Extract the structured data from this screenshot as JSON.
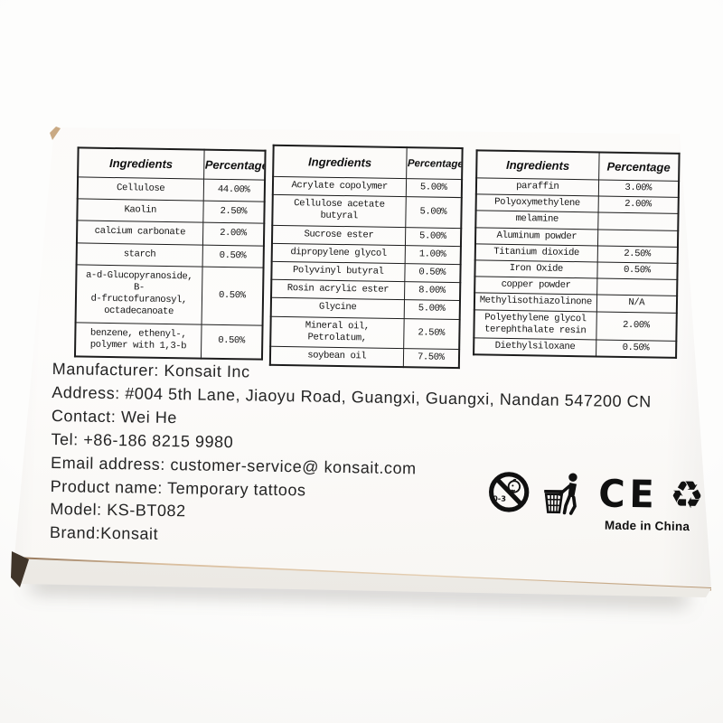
{
  "product_label": {
    "tables": [
      {
        "headers": {
          "ingredients": "Ingredients",
          "percentage": "Percentage"
        },
        "rows": [
          {
            "ingredient": "Cellulose",
            "percentage": "44.00%"
          },
          {
            "ingredient": "Kaolin",
            "percentage": "2.50%"
          },
          {
            "ingredient": "calcium carbonate",
            "percentage": "2.00%"
          },
          {
            "ingredient": "starch",
            "percentage": "0.50%"
          },
          {
            "ingredient": "a-d-Glucopyranoside, B-\nd-fructofuranosyl,\noctadecanoate",
            "percentage": "0.50%"
          },
          {
            "ingredient": "benzene, ethenyl-,\npolymer with 1,3-b",
            "percentage": "0.50%"
          }
        ]
      },
      {
        "headers": {
          "ingredients": "Ingredients",
          "percentage": "Percentage"
        },
        "rows": [
          {
            "ingredient": "Acrylate copolymer",
            "percentage": "5.00%"
          },
          {
            "ingredient": "Cellulose acetate\nbutyral",
            "percentage": "5.00%"
          },
          {
            "ingredient": "Sucrose ester",
            "percentage": "5.00%"
          },
          {
            "ingredient": "dipropylene glycol",
            "percentage": "1.00%"
          },
          {
            "ingredient": "Polyvinyl butyral",
            "percentage": "0.50%"
          },
          {
            "ingredient": "Rosin acrylic ester",
            "percentage": "8.00%"
          },
          {
            "ingredient": "Glycine",
            "percentage": "5.00%"
          },
          {
            "ingredient": "Mineral oil, Petrolatum,",
            "percentage": "2.50%"
          },
          {
            "ingredient": "soybean oil",
            "percentage": "7.50%"
          }
        ]
      },
      {
        "headers": {
          "ingredients": "Ingredients",
          "percentage": "Percentage"
        },
        "rows": [
          {
            "ingredient": "paraffin",
            "percentage": "3.00%"
          },
          {
            "ingredient": "Polyoxymethylene",
            "percentage": "2.00%"
          },
          {
            "ingredient": "melamine",
            "percentage": ""
          },
          {
            "ingredient": "Aluminum powder",
            "percentage": ""
          },
          {
            "ingredient": "Titanium dioxide",
            "percentage": "2.50%"
          },
          {
            "ingredient": "Iron Oxide",
            "percentage": "0.50%"
          },
          {
            "ingredient": "copper powder",
            "percentage": ""
          },
          {
            "ingredient": "Methylisothiazolinone",
            "percentage": "N/A"
          },
          {
            "ingredient": "Polyethylene glycol\nterephthalate resin",
            "percentage": "2.00%"
          },
          {
            "ingredient": "Diethylsiloxane",
            "percentage": "0.50%"
          }
        ]
      }
    ],
    "info_lines": [
      "Manufacturer: Konsait Inc",
      "Address: #004 5th Lane, Jiaoyu Road, Guangxi, Guangxi, Nandan 547200 CN",
      "Contact: Wei He",
      "Tel: +86-186 8215 9980",
      "Email address: customer-service@ konsait.com",
      "Product name: Temporary tattoos",
      "Model: KS-BT082",
      "Brand:Konsait"
    ],
    "icons": {
      "age_warning_label": "0-3",
      "ce_mark_text": "CE",
      "recycle_glyph": "♻"
    },
    "made_in": "Made in China",
    "colors": {
      "ink": "#161616",
      "box_white": "#fdfcfb",
      "cardboard_edge": "#c9a277",
      "corner_dark": "#40352a"
    }
  }
}
